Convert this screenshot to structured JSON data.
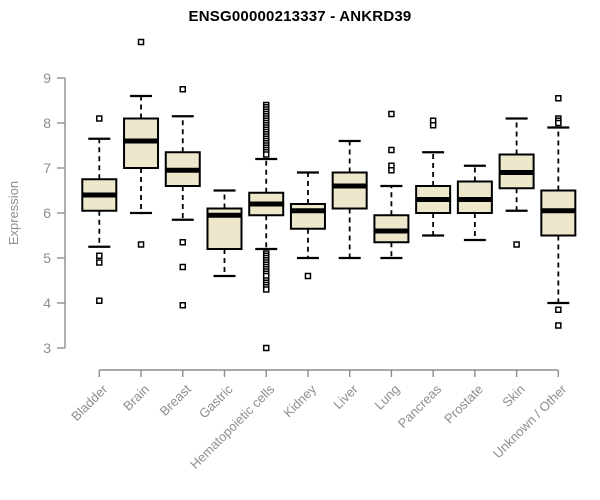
{
  "header": {
    "title": "ENSG00000213337 - ANKRD39"
  },
  "chart_data": {
    "type": "boxplot",
    "title": "ENSG00000213337 - ANKRD39",
    "xlabel": "",
    "ylabel": "Expression",
    "y_ticks": [
      3,
      4,
      5,
      6,
      7,
      8,
      9
    ],
    "ylim": [
      2.8,
      10.0
    ],
    "grid": false,
    "legend": "none",
    "categories": [
      "Bladder",
      "Brain",
      "Breast",
      "Gastric",
      "Hematopoietic cells",
      "Kidney",
      "Liver",
      "Lung",
      "Pancreas",
      "Prostate",
      "Skin",
      "Unknown / Other"
    ],
    "series": [
      {
        "category": "Bladder",
        "whisker_low": 5.25,
        "q1": 6.05,
        "median": 6.4,
        "q3": 6.75,
        "whisker_high": 7.65,
        "outliers": [
          8.1,
          5.05,
          4.9,
          4.05
        ]
      },
      {
        "category": "Brain",
        "whisker_low": 6.0,
        "q1": 7.0,
        "median": 7.6,
        "q3": 8.1,
        "whisker_high": 8.6,
        "outliers": [
          9.8,
          5.3
        ]
      },
      {
        "category": "Breast",
        "whisker_low": 5.85,
        "q1": 6.6,
        "median": 6.95,
        "q3": 7.35,
        "whisker_high": 8.15,
        "outliers": [
          8.75,
          5.35,
          4.8,
          3.95
        ]
      },
      {
        "category": "Gastric",
        "whisker_low": 4.6,
        "q1": 5.2,
        "median": 5.95,
        "q3": 6.1,
        "whisker_high": 6.5,
        "outliers": []
      },
      {
        "category": "Hematopoietic cells",
        "whisker_low": 5.2,
        "q1": 5.95,
        "median": 6.2,
        "q3": 6.45,
        "whisker_high": 7.2,
        "outliers": [
          8.4,
          8.35,
          8.3,
          8.25,
          8.2,
          8.15,
          8.1,
          8.05,
          8.0,
          7.95,
          7.9,
          7.85,
          7.8,
          7.75,
          7.7,
          7.65,
          7.6,
          7.55,
          7.5,
          7.45,
          7.4,
          7.35,
          7.3,
          5.1,
          5.05,
          5.0,
          4.95,
          4.9,
          4.85,
          4.8,
          4.75,
          4.7,
          4.65,
          4.6,
          4.5,
          4.45,
          4.4,
          4.35,
          4.3,
          3.0
        ]
      },
      {
        "category": "Kidney",
        "whisker_low": 5.0,
        "q1": 5.65,
        "median": 6.05,
        "q3": 6.2,
        "whisker_high": 6.9,
        "outliers": [
          4.6
        ]
      },
      {
        "category": "Liver",
        "whisker_low": 5.0,
        "q1": 6.1,
        "median": 6.6,
        "q3": 6.9,
        "whisker_high": 7.6,
        "outliers": []
      },
      {
        "category": "Lung",
        "whisker_low": 5.0,
        "q1": 5.35,
        "median": 5.6,
        "q3": 5.95,
        "whisker_high": 6.6,
        "outliers": [
          8.2,
          7.4,
          7.05,
          6.95
        ]
      },
      {
        "category": "Pancreas",
        "whisker_low": 5.5,
        "q1": 6.0,
        "median": 6.3,
        "q3": 6.6,
        "whisker_high": 7.35,
        "outliers": [
          8.05,
          7.95
        ]
      },
      {
        "category": "Prostate",
        "whisker_low": 5.4,
        "q1": 6.0,
        "median": 6.3,
        "q3": 6.7,
        "whisker_high": 7.05,
        "outliers": []
      },
      {
        "category": "Skin",
        "whisker_low": 6.05,
        "q1": 6.55,
        "median": 6.9,
        "q3": 7.3,
        "whisker_high": 8.1,
        "outliers": [
          5.3
        ]
      },
      {
        "category": "Unknown / Other",
        "whisker_low": 4.0,
        "q1": 5.5,
        "median": 6.05,
        "q3": 6.5,
        "whisker_high": 7.9,
        "outliers": [
          8.55,
          8.1,
          8.05,
          8.0,
          3.85,
          3.5
        ]
      }
    ],
    "style": {
      "box_fill": "#ede8cc",
      "box_stroke": "#000000",
      "median_color": "#000000",
      "axis_color": "#8e8e8e",
      "title_color": "#000000",
      "outlier_marker": "open-square",
      "background": "#ffffff"
    }
  }
}
